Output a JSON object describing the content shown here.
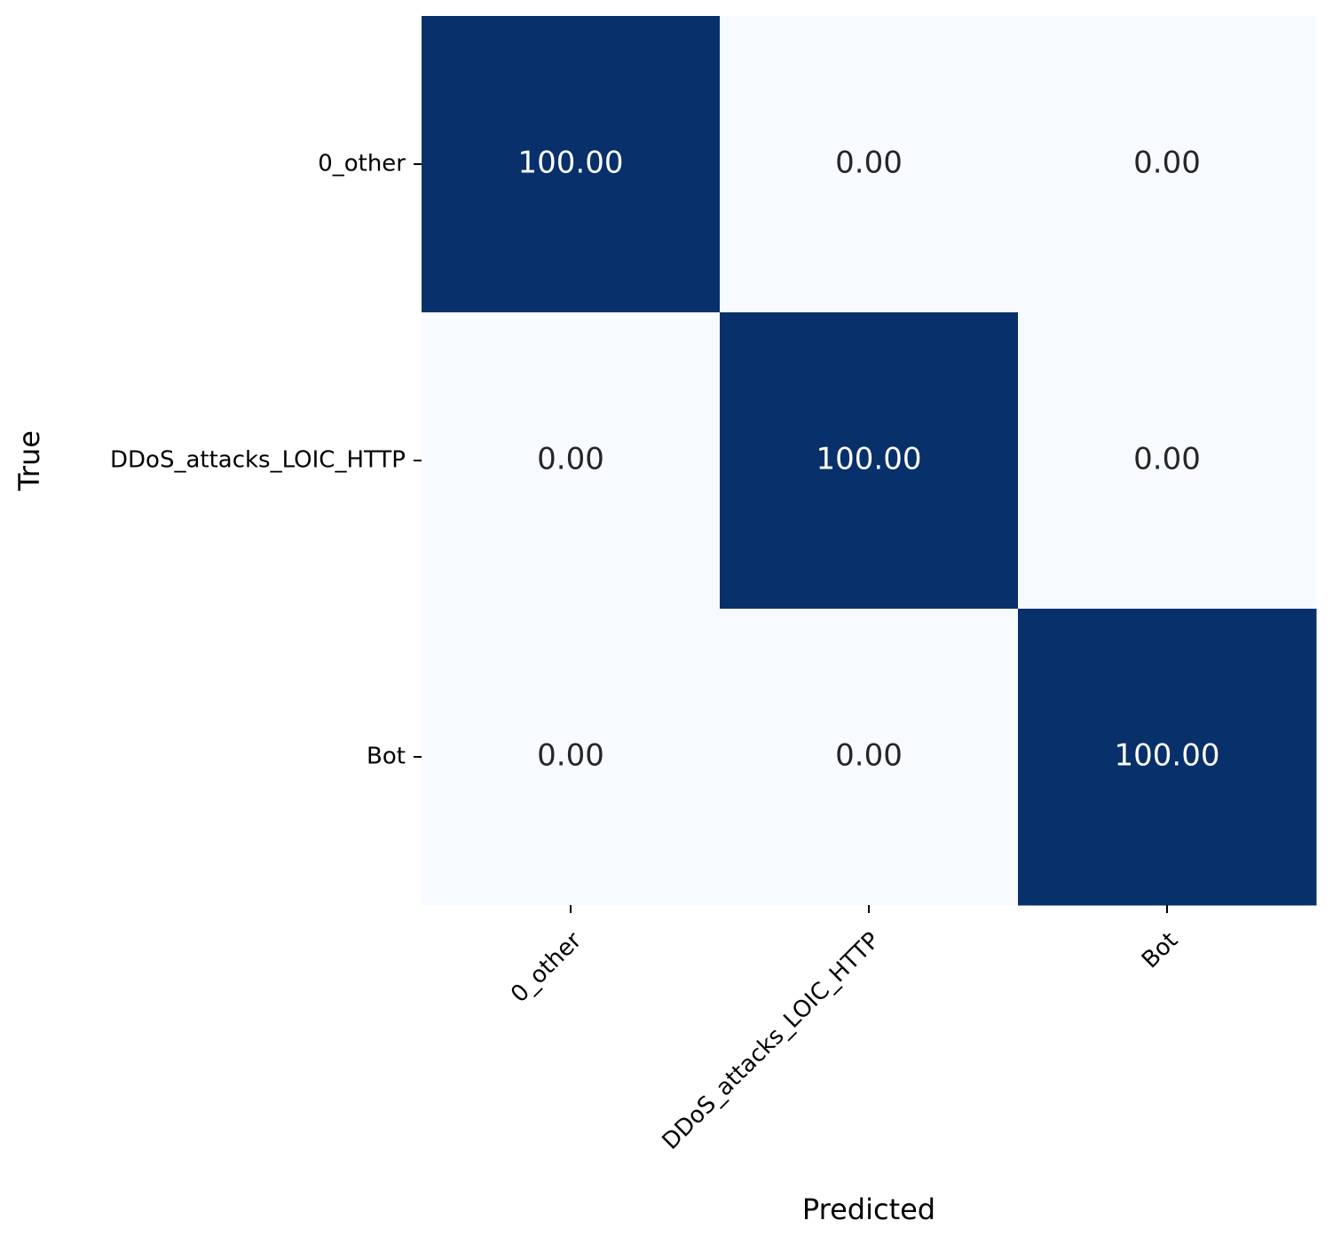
{
  "chart_data": {
    "type": "heatmap",
    "x_categories": [
      "0_other",
      "DDoS_attacks_LOIC_HTTP",
      "Bot"
    ],
    "y_categories": [
      "0_other",
      "DDoS_attacks_LOIC_HTTP",
      "Bot"
    ],
    "values": [
      [
        100,
        0,
        0
      ],
      [
        0,
        100,
        0
      ],
      [
        0,
        0,
        100
      ]
    ],
    "value_labels": [
      [
        "100.00",
        "0.00",
        "0.00"
      ],
      [
        "0.00",
        "100.00",
        "0.00"
      ],
      [
        "0.00",
        "0.00",
        "100.00"
      ]
    ],
    "xlabel": "Predicted",
    "ylabel": "True",
    "colormap": [
      "#f7fbff",
      "#08306b"
    ]
  }
}
